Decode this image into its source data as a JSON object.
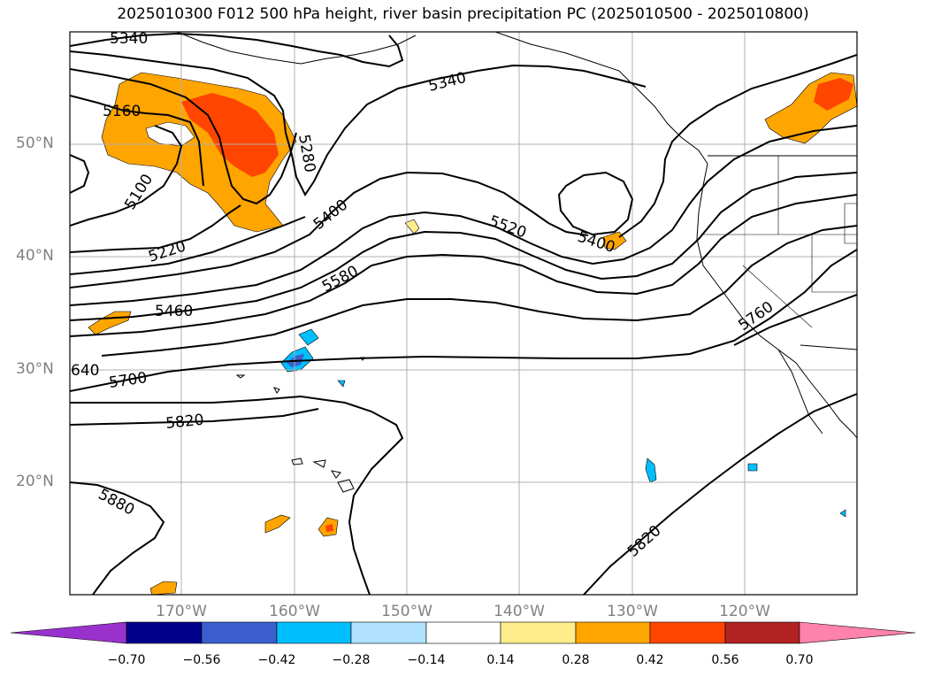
{
  "title": "2025010300 F012 500 hPa height, river basin precipitation PC (2025010500 - 2025010800)",
  "axes": {
    "lat_labels": [
      "50°N",
      "40°N",
      "30°N",
      "20°N"
    ],
    "lon_labels": [
      "170°W",
      "160°W",
      "150°W",
      "140°W",
      "130°W",
      "120°W"
    ]
  },
  "contours": {
    "labels": [
      "5340",
      "5340",
      "5160",
      "5100",
      "5280",
      "5220",
      "5400",
      "5400",
      "5520",
      "5460",
      "5580",
      "640",
      "5700",
      "5760",
      "5820",
      "5880",
      "5820"
    ],
    "color": "#000000"
  },
  "colorbar": {
    "ticks": [
      "−0.70",
      "−0.56",
      "−0.42",
      "−0.28",
      "−0.14",
      "0.14",
      "0.28",
      "0.42",
      "0.56",
      "0.70"
    ],
    "colors": [
      "#9932cc",
      "#00008b",
      "#3a5fcd",
      "#00bfff",
      "#b0e2ff",
      "#ffffff",
      "#ffec8b",
      "#ffa500",
      "#ff4500",
      "#b22222",
      "#ff82ab"
    ]
  },
  "fill_colors": {
    "light_yellow": "#ffec8b",
    "orange": "#ffa500",
    "red_orange": "#ff4500",
    "light_blue": "#00bfff",
    "medium_blue": "#3a5fcd"
  }
}
